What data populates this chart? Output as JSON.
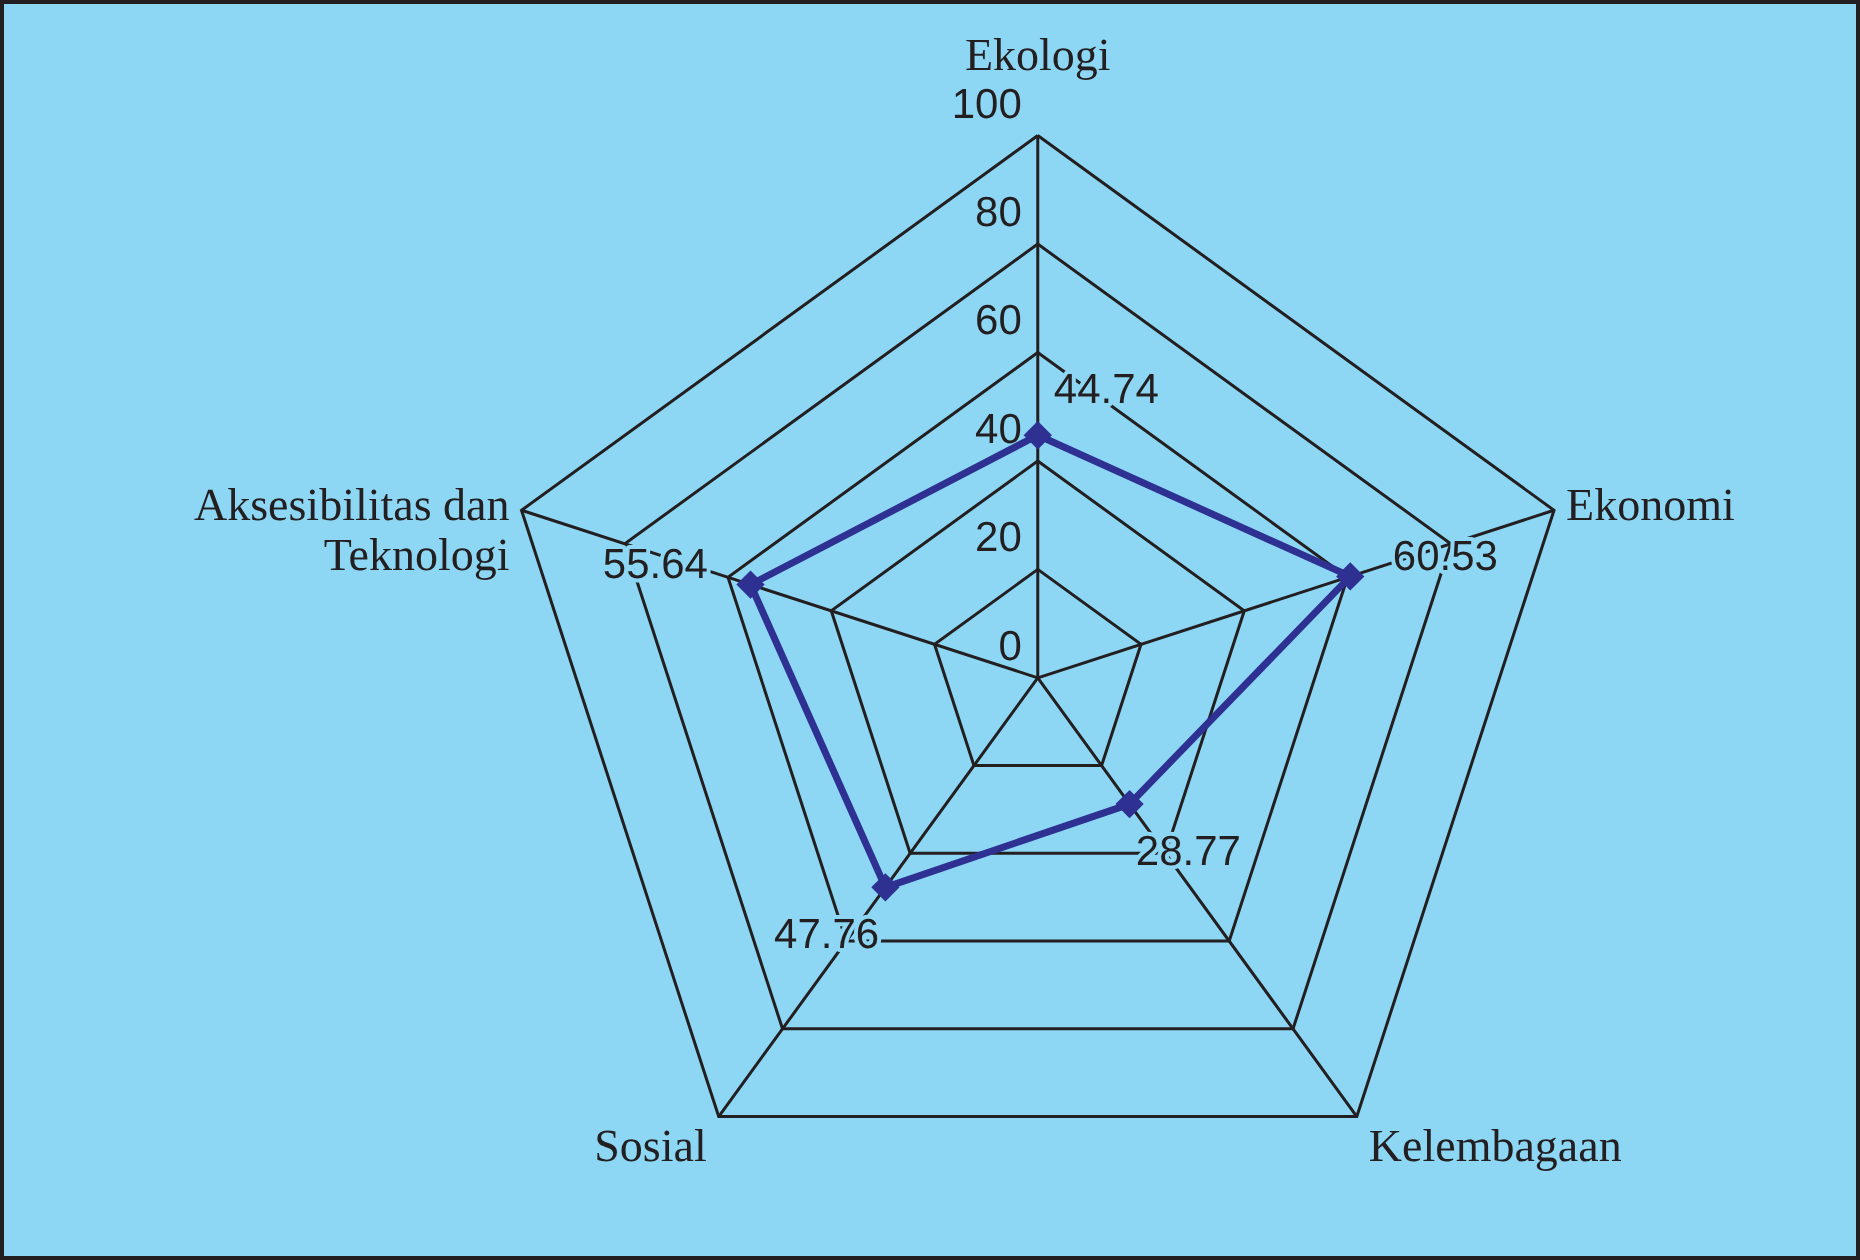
{
  "chart_data": {
    "type": "radar",
    "categories": [
      "Ekologi",
      "Ekonomi",
      "Kelembagaan",
      "Sosial",
      "Aksesibilitas dan\nTeknologi"
    ],
    "series": [
      {
        "color": "#2e3192",
        "values": [
          44.74,
          60.53,
          28.77,
          47.76,
          55.64
        ]
      }
    ],
    "ylim": [
      0,
      100
    ],
    "yticks": [
      0,
      20,
      40,
      60,
      80,
      100
    ],
    "grid": true,
    "data_labels": true,
    "marker": "diamond"
  }
}
